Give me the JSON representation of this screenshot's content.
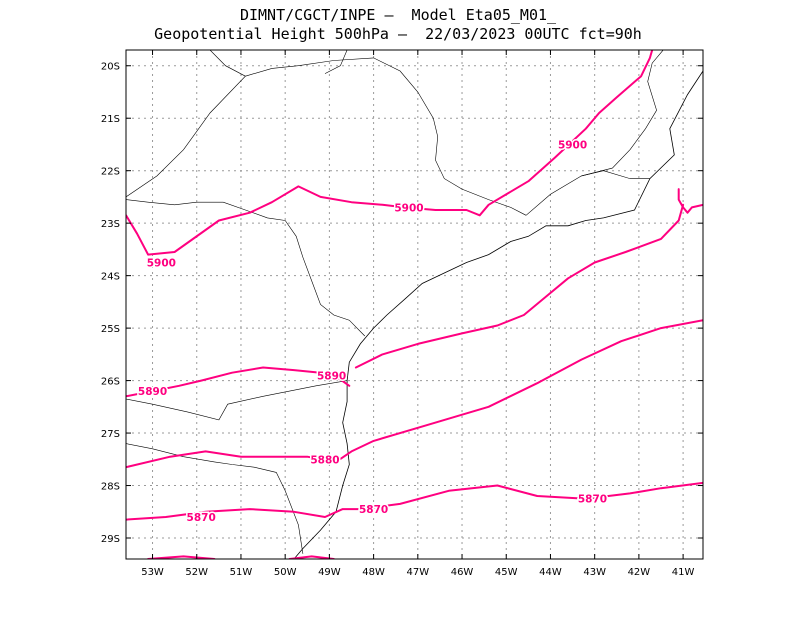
{
  "header": {
    "line1": "DIMNT/CGCT/INPE –  Model Eta05_M01_",
    "line2": "Geopotential Height 500hPa –  22/03/2023 00UTC fct=90h"
  },
  "colors": {
    "contour": "#ff0080",
    "coast": "#000000",
    "grid": "#9a9a9a",
    "frame": "#000000"
  },
  "axes": {
    "lon_ticks": [
      "53W",
      "52W",
      "51W",
      "50W",
      "49W",
      "48W",
      "47W",
      "46W",
      "45W",
      "44W",
      "43W",
      "42W",
      "41W"
    ],
    "lat_ticks": [
      "20S",
      "21S",
      "22S",
      "23S",
      "24S",
      "25S",
      "26S",
      "27S",
      "28S",
      "29S"
    ]
  },
  "chart_data": {
    "type": "contour",
    "field": "Geopotential Height 500hPa",
    "extent": {
      "lon": [
        -53.6,
        -40.55
      ],
      "lat": [
        -29.4,
        -19.7
      ]
    },
    "grid": true,
    "contours": [
      {
        "label": "5900",
        "points": [
          [
            -53.6,
            -22.85
          ],
          [
            -53.35,
            -23.2
          ],
          [
            -53.1,
            -23.6
          ],
          [
            -52.5,
            -23.55
          ],
          [
            -51.5,
            -22.95
          ],
          [
            -50.8,
            -22.8
          ],
          [
            -50.3,
            -22.6
          ],
          [
            -49.7,
            -22.3
          ],
          [
            -49.2,
            -22.5
          ],
          [
            -48.5,
            -22.6
          ],
          [
            -47.8,
            -22.65
          ],
          [
            -47.3,
            -22.7
          ],
          [
            -46.6,
            -22.75
          ],
          [
            -45.9,
            -22.75
          ],
          [
            -45.6,
            -22.85
          ],
          [
            -45.4,
            -22.65
          ],
          [
            -44.9,
            -22.4
          ],
          [
            -44.5,
            -22.2
          ],
          [
            -43.9,
            -21.75
          ],
          [
            -43.2,
            -21.2
          ],
          [
            -42.9,
            -20.9
          ],
          [
            -42.5,
            -20.6
          ],
          [
            -41.95,
            -20.2
          ],
          [
            -41.75,
            -19.85
          ],
          [
            -41.7,
            -19.7
          ]
        ]
      },
      {
        "label": "",
        "points": [
          [
            -40.55,
            -22.65
          ],
          [
            -40.8,
            -22.7
          ],
          [
            -40.9,
            -22.8
          ],
          [
            -41.0,
            -22.7
          ],
          [
            -41.1,
            -22.55
          ],
          [
            -41.1,
            -22.35
          ]
        ]
      },
      {
        "label": "",
        "points": [
          [
            -41.0,
            -22.65
          ],
          [
            -41.1,
            -22.95
          ],
          [
            -41.5,
            -23.3
          ],
          [
            -42.3,
            -23.55
          ],
          [
            -43.0,
            -23.75
          ],
          [
            -43.6,
            -24.05
          ],
          [
            -44.1,
            -24.4
          ],
          [
            -44.6,
            -24.75
          ],
          [
            -45.2,
            -24.95
          ],
          [
            -46.0,
            -25.1
          ],
          [
            -47.0,
            -25.3
          ],
          [
            -47.8,
            -25.5
          ],
          [
            -48.4,
            -25.75
          ]
        ]
      },
      {
        "label": "5890",
        "points": [
          [
            -53.6,
            -26.3
          ],
          [
            -53.0,
            -26.2
          ],
          [
            -52.4,
            -26.1
          ],
          [
            -51.9,
            -26.0
          ],
          [
            -51.2,
            -25.85
          ],
          [
            -50.5,
            -25.75
          ],
          [
            -49.8,
            -25.8
          ],
          [
            -49.2,
            -25.85
          ],
          [
            -48.8,
            -25.95
          ],
          [
            -48.55,
            -26.1
          ]
        ]
      },
      {
        "label": "5880",
        "points": [
          [
            -53.6,
            -27.65
          ],
          [
            -52.6,
            -27.45
          ],
          [
            -51.8,
            -27.35
          ],
          [
            -51.0,
            -27.45
          ],
          [
            -50.2,
            -27.45
          ],
          [
            -49.5,
            -27.45
          ],
          [
            -48.85,
            -27.55
          ],
          [
            -48.5,
            -27.35
          ],
          [
            -48.0,
            -27.15
          ],
          [
            -46.8,
            -26.85
          ],
          [
            -45.4,
            -26.5
          ],
          [
            -44.3,
            -26.05
          ],
          [
            -43.3,
            -25.6
          ],
          [
            -42.4,
            -25.25
          ],
          [
            -41.5,
            -25.0
          ],
          [
            -40.55,
            -24.85
          ]
        ]
      },
      {
        "label": "5870",
        "points": [
          [
            -53.6,
            -28.65
          ],
          [
            -52.7,
            -28.6
          ],
          [
            -51.8,
            -28.5
          ],
          [
            -50.8,
            -28.45
          ],
          [
            -49.8,
            -28.5
          ],
          [
            -49.1,
            -28.6
          ],
          [
            -48.7,
            -28.45
          ],
          [
            -48.3,
            -28.45
          ],
          [
            -47.4,
            -28.35
          ],
          [
            -46.3,
            -28.1
          ],
          [
            -45.2,
            -28.0
          ],
          [
            -44.3,
            -28.2
          ],
          [
            -43.2,
            -28.25
          ],
          [
            -42.2,
            -28.15
          ],
          [
            -41.5,
            -28.05
          ],
          [
            -40.55,
            -27.95
          ]
        ]
      },
      {
        "label": "",
        "points": [
          [
            -53.1,
            -29.4
          ],
          [
            -52.3,
            -29.35
          ],
          [
            -51.6,
            -29.4
          ]
        ]
      },
      {
        "label": "",
        "points": [
          [
            -49.9,
            -29.4
          ],
          [
            -49.4,
            -29.35
          ],
          [
            -48.9,
            -29.4
          ]
        ]
      }
    ],
    "contour_labels": [
      {
        "text": "5900",
        "lon": -52.8,
        "lat": -23.75
      },
      {
        "text": "5900",
        "lon": -47.2,
        "lat": -22.7
      },
      {
        "text": "5900",
        "lon": -43.5,
        "lat": -21.5
      },
      {
        "text": "5890",
        "lon": -53.0,
        "lat": -26.2
      },
      {
        "text": "5890",
        "lon": -48.95,
        "lat": -25.9
      },
      {
        "text": "5880",
        "lon": -49.1,
        "lat": -27.5
      },
      {
        "text": "5870",
        "lon": -51.9,
        "lat": -28.6
      },
      {
        "text": "5870",
        "lon": -48.0,
        "lat": -28.45
      },
      {
        "text": "5870",
        "lon": -43.05,
        "lat": -28.25
      }
    ],
    "coastline": [
      [
        -40.55,
        -20.1
      ],
      [
        -40.9,
        -20.55
      ],
      [
        -41.3,
        -21.2
      ],
      [
        -41.2,
        -21.7
      ],
      [
        -41.75,
        -22.15
      ],
      [
        -42.1,
        -22.75
      ],
      [
        -42.8,
        -22.9
      ],
      [
        -43.2,
        -22.95
      ],
      [
        -43.6,
        -23.05
      ],
      [
        -44.1,
        -23.05
      ],
      [
        -44.5,
        -23.25
      ],
      [
        -44.9,
        -23.35
      ],
      [
        -45.4,
        -23.6
      ],
      [
        -45.9,
        -23.75
      ],
      [
        -46.4,
        -23.95
      ],
      [
        -46.9,
        -24.15
      ],
      [
        -47.3,
        -24.45
      ],
      [
        -47.7,
        -24.75
      ],
      [
        -48.0,
        -25.0
      ],
      [
        -48.3,
        -25.3
      ],
      [
        -48.55,
        -25.65
      ],
      [
        -48.6,
        -26.0
      ],
      [
        -48.6,
        -26.4
      ],
      [
        -48.7,
        -26.8
      ],
      [
        -48.6,
        -27.2
      ],
      [
        -48.55,
        -27.6
      ],
      [
        -48.7,
        -28.0
      ],
      [
        -48.85,
        -28.5
      ],
      [
        -49.2,
        -28.85
      ],
      [
        -49.6,
        -29.2
      ],
      [
        -49.8,
        -29.4
      ]
    ],
    "borders": [
      [
        [
          -53.6,
          -22.55
        ],
        [
          -53.1,
          -22.6
        ],
        [
          -52.5,
          -22.65
        ],
        [
          -52.0,
          -22.6
        ],
        [
          -51.4,
          -22.6
        ],
        [
          -50.9,
          -22.75
        ],
        [
          -50.4,
          -22.9
        ],
        [
          -50.0,
          -22.95
        ],
        [
          -49.75,
          -23.25
        ],
        [
          -49.6,
          -23.65
        ],
        [
          -49.4,
          -24.1
        ],
        [
          -49.2,
          -24.55
        ],
        [
          -48.9,
          -24.75
        ],
        [
          -48.55,
          -24.85
        ],
        [
          -48.2,
          -25.15
        ]
      ],
      [
        [
          -53.6,
          -26.35
        ],
        [
          -53.0,
          -26.45
        ],
        [
          -52.2,
          -26.6
        ],
        [
          -51.5,
          -26.75
        ],
        [
          -51.3,
          -26.45
        ],
        [
          -50.5,
          -26.3
        ],
        [
          -49.9,
          -26.2
        ],
        [
          -49.3,
          -26.1
        ],
        [
          -48.6,
          -26.0
        ]
      ],
      [
        [
          -53.6,
          -27.2
        ],
        [
          -53.0,
          -27.3
        ],
        [
          -52.3,
          -27.45
        ],
        [
          -51.6,
          -27.55
        ],
        [
          -51.2,
          -27.6
        ],
        [
          -50.7,
          -27.65
        ],
        [
          -50.2,
          -27.75
        ],
        [
          -50.0,
          -28.1
        ],
        [
          -49.7,
          -28.75
        ],
        [
          -49.6,
          -29.3
        ]
      ],
      [
        [
          -50.3,
          -20.05
        ],
        [
          -50.9,
          -20.2
        ],
        [
          -51.7,
          -20.9
        ],
        [
          -52.3,
          -21.6
        ],
        [
          -52.9,
          -22.1
        ],
        [
          -53.6,
          -22.5
        ]
      ],
      [
        [
          -50.3,
          -20.05
        ],
        [
          -49.7,
          -20.0
        ],
        [
          -48.9,
          -19.9
        ],
        [
          -48.0,
          -19.85
        ],
        [
          -47.4,
          -20.1
        ],
        [
          -47.0,
          -20.5
        ],
        [
          -46.65,
          -21.0
        ],
        [
          -46.55,
          -21.35
        ],
        [
          -46.6,
          -21.8
        ],
        [
          -46.4,
          -22.15
        ],
        [
          -46.0,
          -22.35
        ],
        [
          -45.4,
          -22.55
        ],
        [
          -44.9,
          -22.7
        ],
        [
          -44.55,
          -22.85
        ]
      ],
      [
        [
          -44.55,
          -22.85
        ],
        [
          -44.0,
          -22.45
        ],
        [
          -43.3,
          -22.1
        ],
        [
          -42.6,
          -21.95
        ],
        [
          -42.2,
          -21.6
        ],
        [
          -41.85,
          -21.2
        ],
        [
          -41.6,
          -20.85
        ],
        [
          -41.8,
          -20.3
        ],
        [
          -41.7,
          -19.95
        ],
        [
          -41.45,
          -19.7
        ]
      ],
      [
        [
          -43.3,
          -22.1
        ],
        [
          -42.8,
          -22.0
        ],
        [
          -42.2,
          -22.15
        ],
        [
          -41.75,
          -22.15
        ]
      ],
      [
        [
          -51.7,
          -19.7
        ],
        [
          -51.35,
          -20.0
        ],
        [
          -50.9,
          -20.2
        ]
      ],
      [
        [
          -48.6,
          -19.7
        ],
        [
          -48.75,
          -20.0
        ],
        [
          -49.1,
          -20.15
        ]
      ]
    ]
  }
}
